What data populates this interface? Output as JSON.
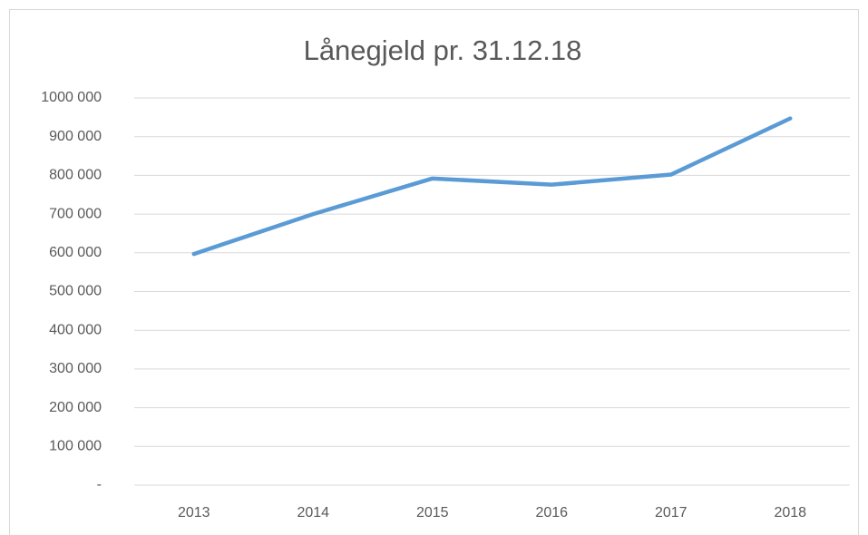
{
  "chart_data": {
    "type": "line",
    "title": "Lånegjeld pr. 31.12.18",
    "categories": [
      "2013",
      "2014",
      "2015",
      "2016",
      "2017",
      "2018"
    ],
    "values": [
      597000,
      700000,
      792000,
      776000,
      802000,
      947000
    ],
    "color": "#5b9bd5",
    "ylim": [
      0,
      1000000
    ],
    "yticks": [
      {
        "value": 0,
        "label": "-"
      },
      {
        "value": 100000,
        "label": "100 000"
      },
      {
        "value": 200000,
        "label": "200 000"
      },
      {
        "value": 300000,
        "label": "300 000"
      },
      {
        "value": 400000,
        "label": "400 000"
      },
      {
        "value": 500000,
        "label": "500 000"
      },
      {
        "value": 600000,
        "label": "600 000"
      },
      {
        "value": 700000,
        "label": "700 000"
      },
      {
        "value": 800000,
        "label": "800 000"
      },
      {
        "value": 900000,
        "label": "900 000"
      },
      {
        "value": 1000000,
        "label": "1000 000"
      }
    ],
    "grid": true
  }
}
